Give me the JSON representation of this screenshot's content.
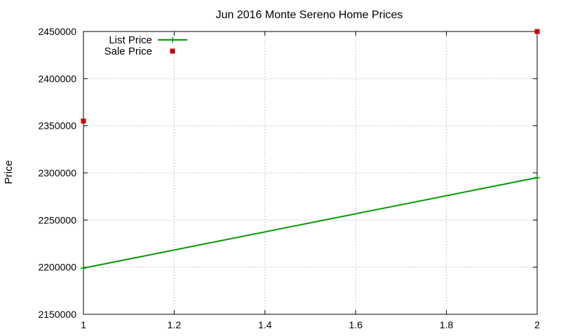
{
  "chart_data": {
    "type": "line",
    "title": "Jun 2016 Monte Sereno Home Prices",
    "xlabel": "",
    "ylabel": "Price",
    "xlim": [
      1,
      2
    ],
    "ylim": [
      2150000,
      2450000
    ],
    "xticks": [
      "1",
      "1.2",
      "1.4",
      "1.6",
      "1.8",
      "2"
    ],
    "yticks": [
      "2150000",
      "2200000",
      "2250000",
      "2300000",
      "2350000",
      "2400000",
      "2450000"
    ],
    "grid": true,
    "legend_position": "top-left",
    "series": [
      {
        "name": "List Price",
        "style": "line",
        "color": "#009900",
        "marker": "plus",
        "x": [
          1,
          2
        ],
        "y": [
          2199000,
          2295000
        ]
      },
      {
        "name": "Sale Price",
        "style": "points",
        "color": "#cc0000",
        "marker": "square",
        "x": [
          1,
          2
        ],
        "y": [
          2355000,
          2450000
        ]
      }
    ]
  }
}
